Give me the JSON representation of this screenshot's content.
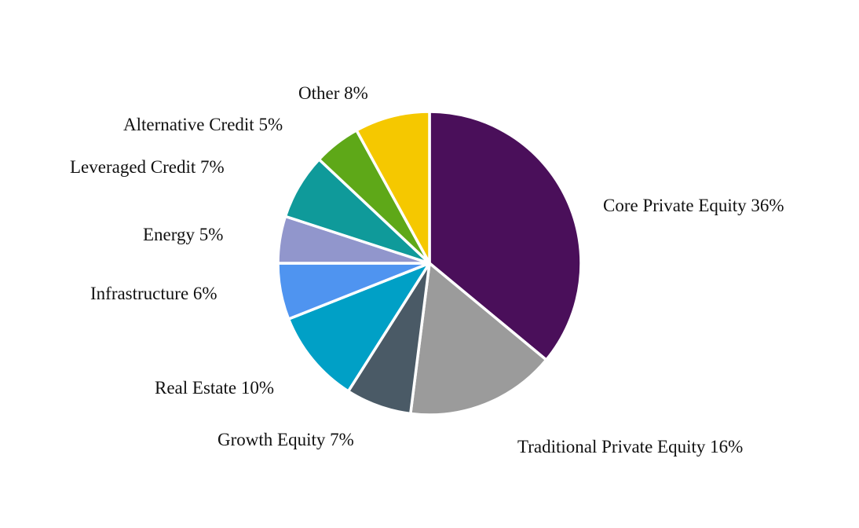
{
  "chart_data": {
    "type": "pie",
    "start_angle": "12 o'clock",
    "direction": "clockwise",
    "slices": [
      {
        "label": "Core Private Equity 36%",
        "category": "Core Private Equity",
        "value": 36,
        "color": "#4a0f5a"
      },
      {
        "label": "Traditional Private Equity 16%",
        "category": "Traditional Private Equity",
        "value": 16,
        "color": "#9b9b9b"
      },
      {
        "label": "Growth Equity 7%",
        "category": "Growth Equity",
        "value": 7,
        "color": "#4a5a66"
      },
      {
        "label": "Real Estate 10%",
        "category": "Real Estate",
        "value": 10,
        "color": "#00a0c6"
      },
      {
        "label": "Infrastructure 6%",
        "category": "Infrastructure",
        "value": 6,
        "color": "#4f94f0"
      },
      {
        "label": "Energy 5%",
        "category": "Energy",
        "value": 5,
        "color": "#9196cc"
      },
      {
        "label": "Leveraged Credit 7%",
        "category": "Leveraged Credit",
        "value": 7,
        "color": "#0f9a9a"
      },
      {
        "label": "Alternative Credit 5%",
        "category": "Alternative Credit",
        "value": 5,
        "color": "#5ea818"
      },
      {
        "label": "Other 8%",
        "category": "Other",
        "value": 8,
        "color": "#f5c800"
      }
    ],
    "legend": "none (outside slice labels)"
  }
}
